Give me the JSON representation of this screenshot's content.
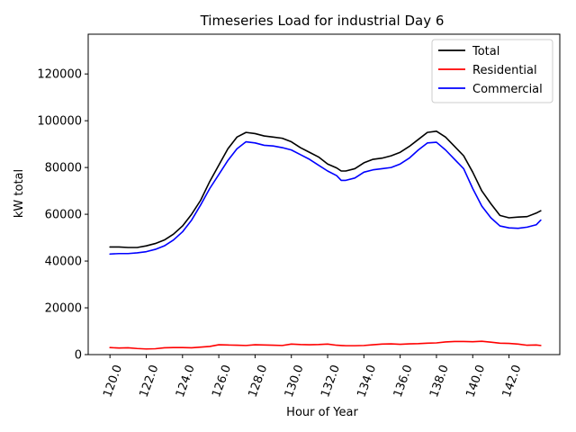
{
  "chart_data": {
    "type": "line",
    "title": "Timeseries Load for industrial   Day 6",
    "xlabel": "Hour of Year",
    "ylabel": "kW total",
    "xlim": [
      118.8,
      144.8
    ],
    "ylim": [
      0,
      137000
    ],
    "xticks": [
      120,
      122,
      124,
      126,
      128,
      130,
      132,
      134,
      136,
      138,
      140,
      142
    ],
    "xtick_labels": [
      "120.0",
      "122.0",
      "124.0",
      "126.0",
      "128.0",
      "130.0",
      "132.0",
      "134.0",
      "136.0",
      "138.0",
      "140.0",
      "142.0"
    ],
    "yticks": [
      0,
      20000,
      40000,
      60000,
      80000,
      100000,
      120000
    ],
    "ytick_labels": [
      "0",
      "20000",
      "40000",
      "60000",
      "80000",
      "100000",
      "120000"
    ],
    "legend_position": "top-right",
    "series": [
      {
        "name": "Total",
        "color": "#000000",
        "x": [
          120.0,
          120.5,
          121.0,
          121.5,
          122.0,
          122.5,
          123.0,
          123.5,
          124.0,
          124.5,
          125.0,
          125.5,
          126.0,
          126.5,
          127.0,
          127.5,
          128.0,
          128.5,
          129.0,
          129.5,
          130.0,
          130.5,
          131.0,
          131.5,
          132.0,
          132.5,
          132.75,
          133.0,
          133.5,
          134.0,
          134.5,
          135.0,
          135.5,
          136.0,
          136.5,
          137.0,
          137.5,
          138.0,
          138.5,
          139.0,
          139.5,
          140.0,
          140.5,
          141.0,
          141.5,
          142.0,
          142.5,
          143.0,
          143.5,
          143.75
        ],
        "y": [
          46000,
          46000,
          45800,
          45800,
          46500,
          47500,
          49000,
          51500,
          55000,
          60000,
          66000,
          74000,
          81000,
          88000,
          93000,
          95000,
          94500,
          93500,
          93000,
          92500,
          91000,
          88500,
          86500,
          84500,
          81500,
          79800,
          78500,
          78500,
          79500,
          82000,
          83500,
          84000,
          85000,
          86500,
          89000,
          92000,
          95000,
          95500,
          93000,
          89000,
          85000,
          78000,
          70000,
          64500,
          59500,
          58500,
          58800,
          59000,
          60500,
          61500
        ]
      },
      {
        "name": "Residential",
        "color": "#ff0000",
        "x": [
          120.0,
          120.5,
          121.0,
          121.5,
          122.0,
          122.5,
          123.0,
          123.5,
          124.0,
          124.5,
          125.0,
          125.5,
          126.0,
          126.5,
          127.0,
          127.5,
          128.0,
          128.5,
          129.0,
          129.5,
          130.0,
          130.5,
          131.0,
          131.5,
          132.0,
          132.5,
          133.0,
          133.5,
          134.0,
          134.5,
          135.0,
          135.5,
          136.0,
          136.5,
          137.0,
          137.5,
          138.0,
          138.5,
          139.0,
          139.5,
          140.0,
          140.5,
          141.0,
          141.5,
          142.0,
          142.5,
          143.0,
          143.5,
          143.75
        ],
        "y": [
          3000,
          2800,
          2900,
          2600,
          2400,
          2500,
          2900,
          3000,
          3000,
          2900,
          3200,
          3500,
          4200,
          4100,
          4000,
          3900,
          4200,
          4100,
          4000,
          3900,
          4500,
          4300,
          4200,
          4300,
          4500,
          4000,
          3800,
          3800,
          3900,
          4200,
          4500,
          4600,
          4400,
          4600,
          4700,
          4900,
          5000,
          5400,
          5600,
          5600,
          5500,
          5700,
          5300,
          4900,
          4800,
          4500,
          4000,
          4100,
          3900
        ]
      },
      {
        "name": "Commercial",
        "color": "#0000ff",
        "x": [
          120.0,
          120.5,
          121.0,
          121.5,
          122.0,
          122.5,
          123.0,
          123.5,
          124.0,
          124.5,
          125.0,
          125.5,
          126.0,
          126.5,
          127.0,
          127.5,
          128.0,
          128.5,
          129.0,
          129.5,
          130.0,
          130.5,
          131.0,
          131.5,
          132.0,
          132.5,
          132.75,
          133.0,
          133.5,
          134.0,
          134.5,
          135.0,
          135.5,
          136.0,
          136.5,
          137.0,
          137.5,
          138.0,
          138.5,
          139.0,
          139.5,
          140.0,
          140.5,
          141.0,
          141.5,
          142.0,
          142.5,
          143.0,
          143.5,
          143.75
        ],
        "y": [
          43000,
          43200,
          43200,
          43500,
          44000,
          45000,
          46500,
          49000,
          52500,
          57500,
          64000,
          71000,
          77000,
          83000,
          88000,
          91000,
          90500,
          89500,
          89200,
          88500,
          87500,
          85500,
          83500,
          81000,
          78500,
          76500,
          74500,
          74500,
          75500,
          78000,
          79000,
          79500,
          80000,
          81500,
          84000,
          87500,
          90500,
          90800,
          87500,
          83500,
          79500,
          71000,
          63500,
          58500,
          55000,
          54200,
          54000,
          54500,
          55500,
          57500
        ]
      }
    ]
  }
}
